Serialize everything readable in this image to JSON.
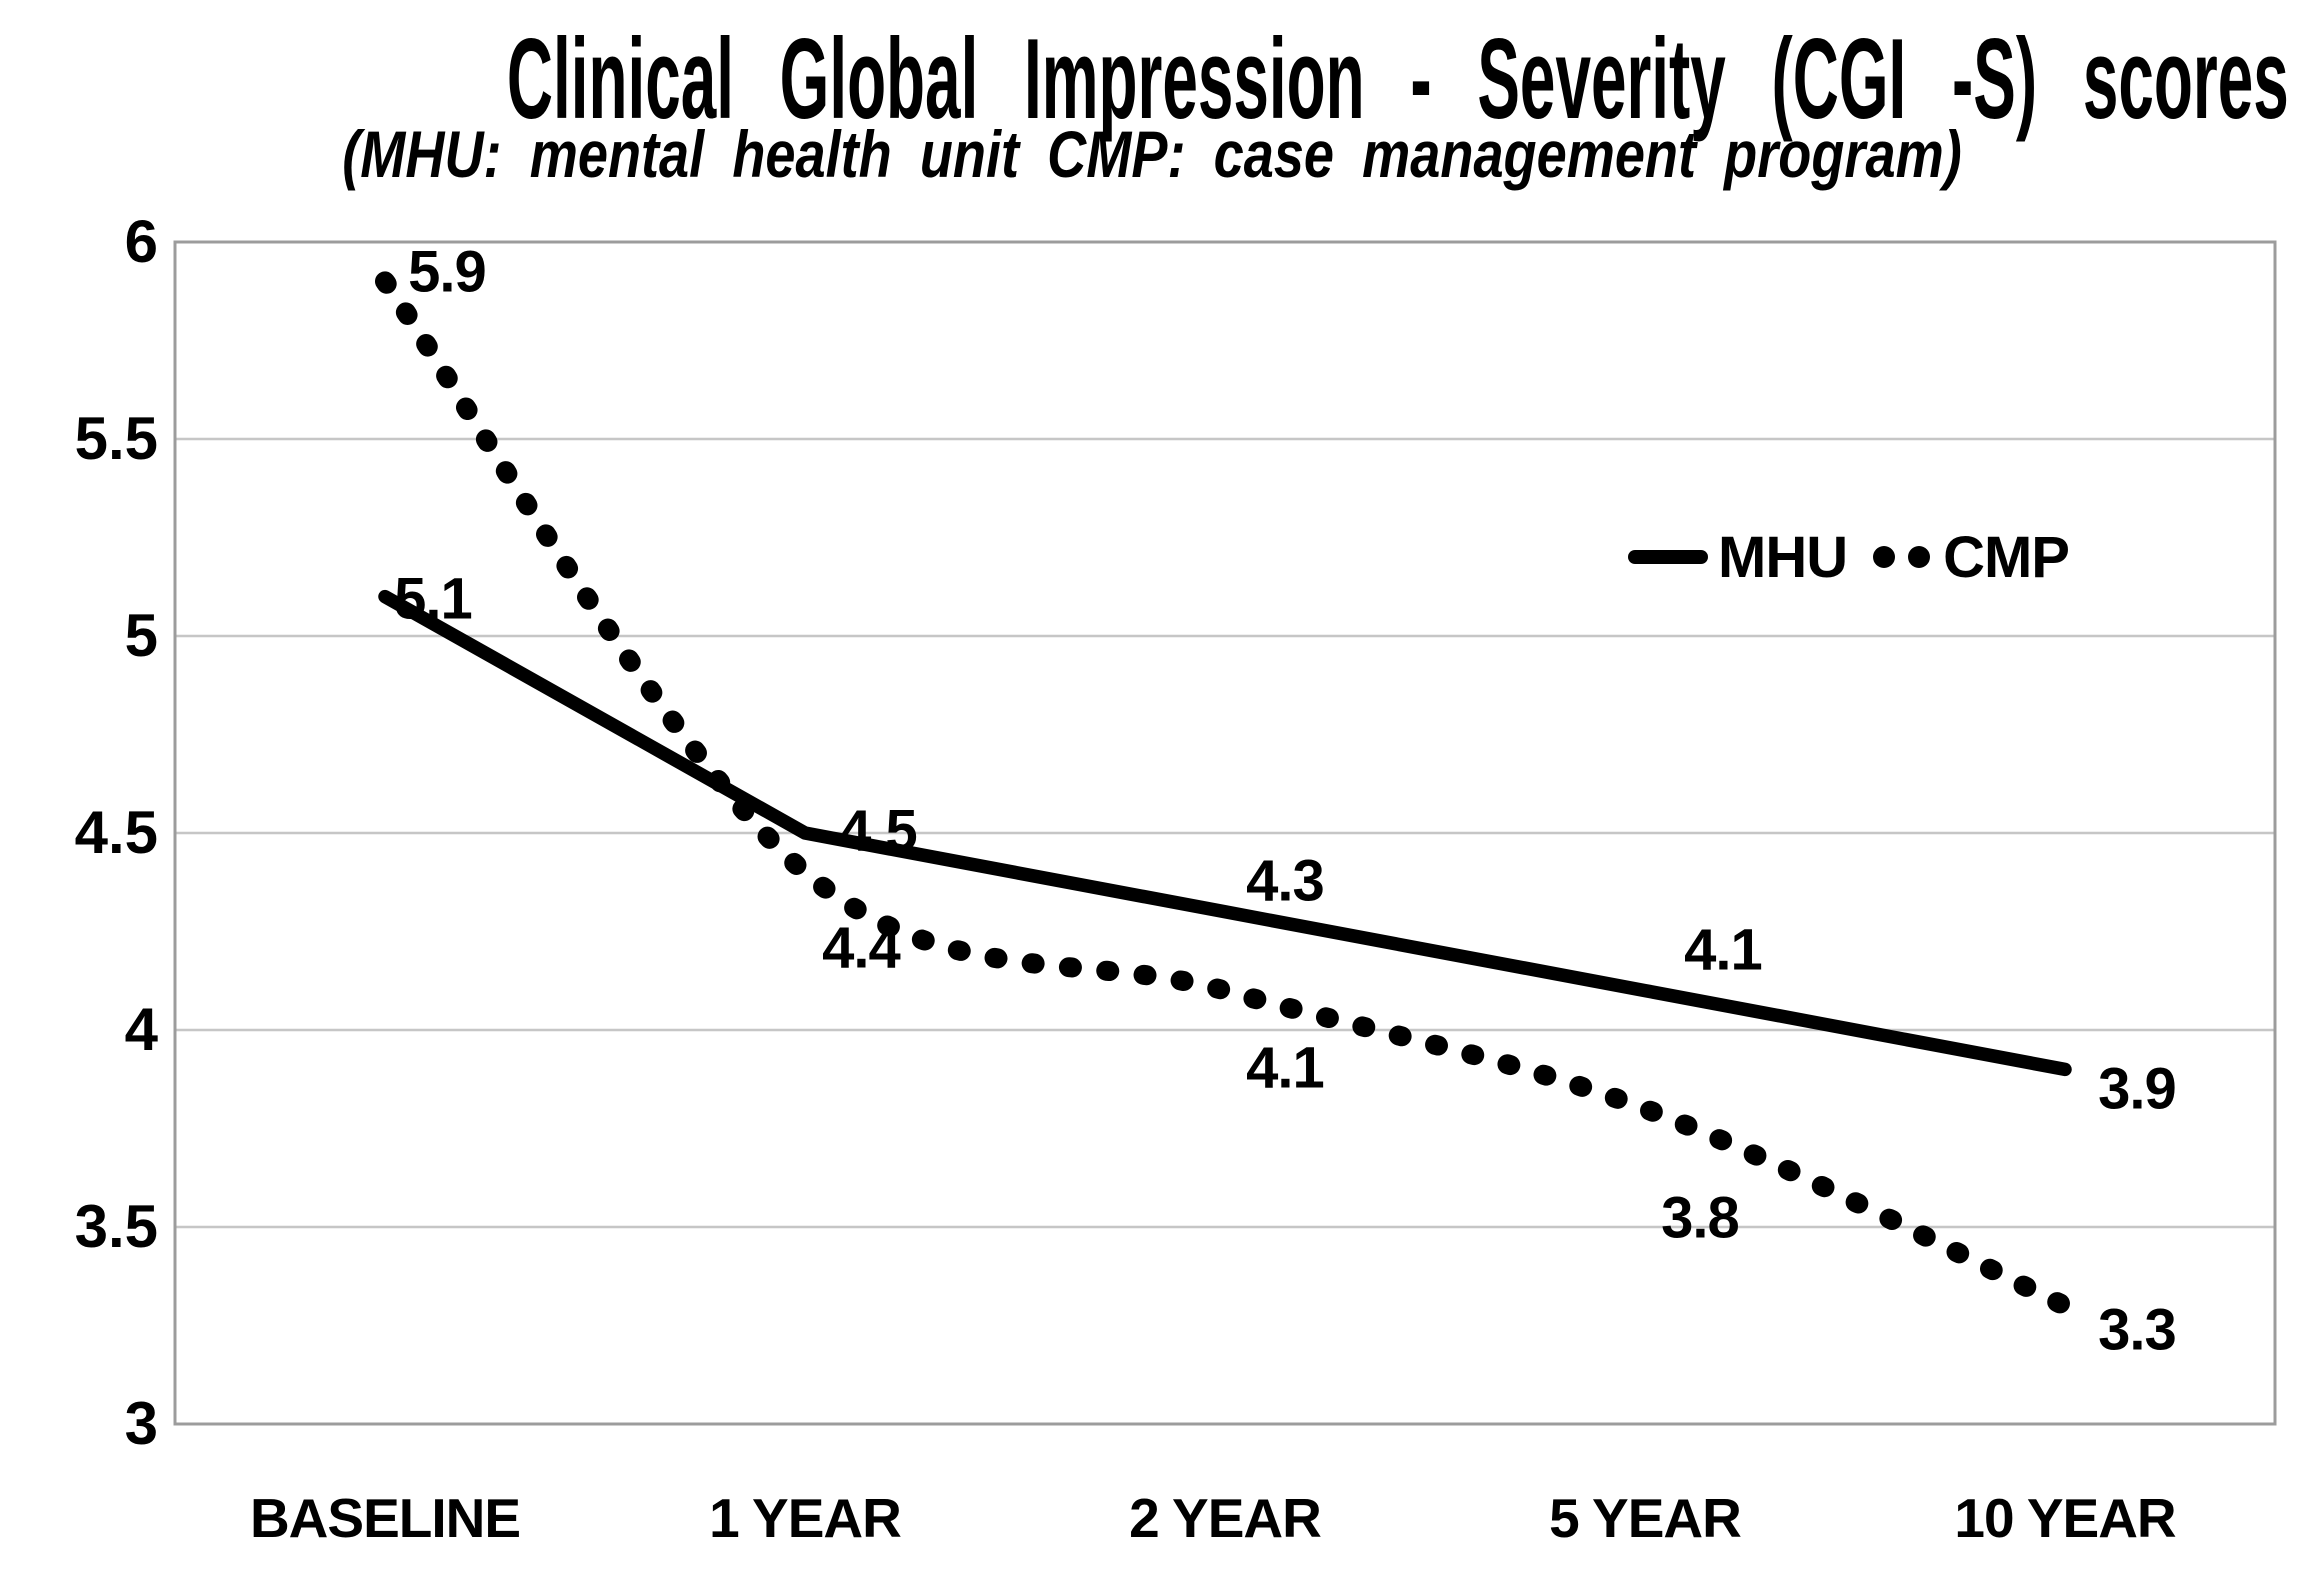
{
  "title": "Clinical Global Impression - Severity (CGI -S) scores",
  "subtitle": "(MHU: mental health unit  CMP: case management program)",
  "legend": {
    "items": [
      {
        "label": "MHU",
        "marker": "solid-line"
      },
      {
        "label": "CMP",
        "marker": "dots"
      }
    ]
  },
  "chart_data": {
    "type": "line",
    "title": "Clinical Global Impression - Severity (CGI -S) scores",
    "subtitle": "(MHU: mental health unit  CMP: case management program)",
    "categories": [
      "BASELINE",
      "1 YEAR",
      "2 YEAR",
      "5 YEAR",
      "10 YEAR"
    ],
    "series": [
      {
        "name": "MHU",
        "line_style": "solid",
        "color": "#000000",
        "values": [
          5.1,
          4.5,
          4.3,
          4.1,
          3.9
        ]
      },
      {
        "name": "CMP",
        "line_style": "dotted",
        "color": "#000000",
        "values": [
          5.9,
          4.4,
          4.1,
          3.8,
          3.3
        ]
      }
    ],
    "data_labels": {
      "MHU": [
        "5.1",
        "4.5",
        "4.3",
        "4.1",
        "3.9"
      ],
      "CMP": [
        "5.9",
        "4.4",
        "4.1",
        "3.8",
        "3.3"
      ]
    },
    "ylim": [
      3,
      6
    ],
    "yticks": [
      6,
      5.5,
      5,
      4.5,
      4,
      3.5,
      3
    ],
    "ytick_labels": [
      "6",
      "5.5",
      "5",
      "4.5",
      "4",
      "3.5",
      "3"
    ],
    "xlabel": "",
    "ylabel": "",
    "grid": "horizontal",
    "legend_position": "upper-right",
    "gridline_color": "#c6c6c6",
    "frame_color": "#9c9c9c",
    "line_color": "#000000"
  }
}
